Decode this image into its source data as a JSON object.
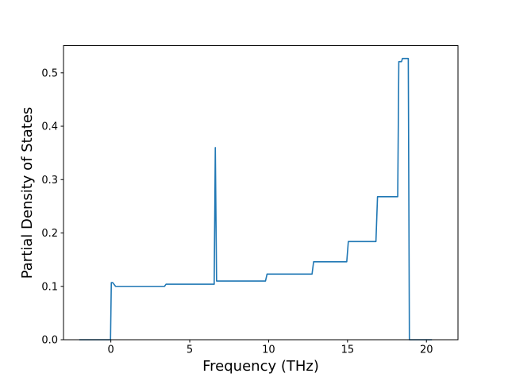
{
  "window": {
    "background_color": "#ffffff"
  },
  "chart_data": {
    "type": "line",
    "title": "",
    "xlabel": "Frequency (THz)",
    "ylabel": "Partial Density of States",
    "xlim": [
      -3.0,
      22.0
    ],
    "ylim": [
      0.0,
      0.551
    ],
    "x_ticks": {
      "values": [
        0,
        5,
        10,
        15,
        20
      ],
      "labels": [
        "0",
        "5",
        "10",
        "15",
        "20"
      ]
    },
    "y_ticks": {
      "values": [
        0.0,
        0.1,
        0.2,
        0.3,
        0.4,
        0.5
      ],
      "labels": [
        "0.0",
        "0.1",
        "0.2",
        "0.3",
        "0.4",
        "0.5"
      ]
    },
    "grid": false,
    "legend": "none",
    "line_color": "#1f77b4",
    "axis_color": "#000000",
    "series": [
      {
        "name": "partial-density-of-states",
        "points": [
          [
            -2.0,
            0.0
          ],
          [
            -0.02,
            0.0
          ],
          [
            0.03,
            0.107
          ],
          [
            0.12,
            0.107
          ],
          [
            0.3,
            0.1
          ],
          [
            3.4,
            0.1
          ],
          [
            3.5,
            0.104
          ],
          [
            6.55,
            0.104
          ],
          [
            6.62,
            0.36
          ],
          [
            6.7,
            0.11
          ],
          [
            9.8,
            0.11
          ],
          [
            9.9,
            0.123
          ],
          [
            12.75,
            0.123
          ],
          [
            12.85,
            0.146
          ],
          [
            14.95,
            0.146
          ],
          [
            15.05,
            0.184
          ],
          [
            16.8,
            0.184
          ],
          [
            16.9,
            0.268
          ],
          [
            18.18,
            0.268
          ],
          [
            18.25,
            0.521
          ],
          [
            18.42,
            0.521
          ],
          [
            18.48,
            0.527
          ],
          [
            18.85,
            0.527
          ],
          [
            18.92,
            0.0
          ],
          [
            20.35,
            0.0
          ]
        ]
      }
    ]
  }
}
